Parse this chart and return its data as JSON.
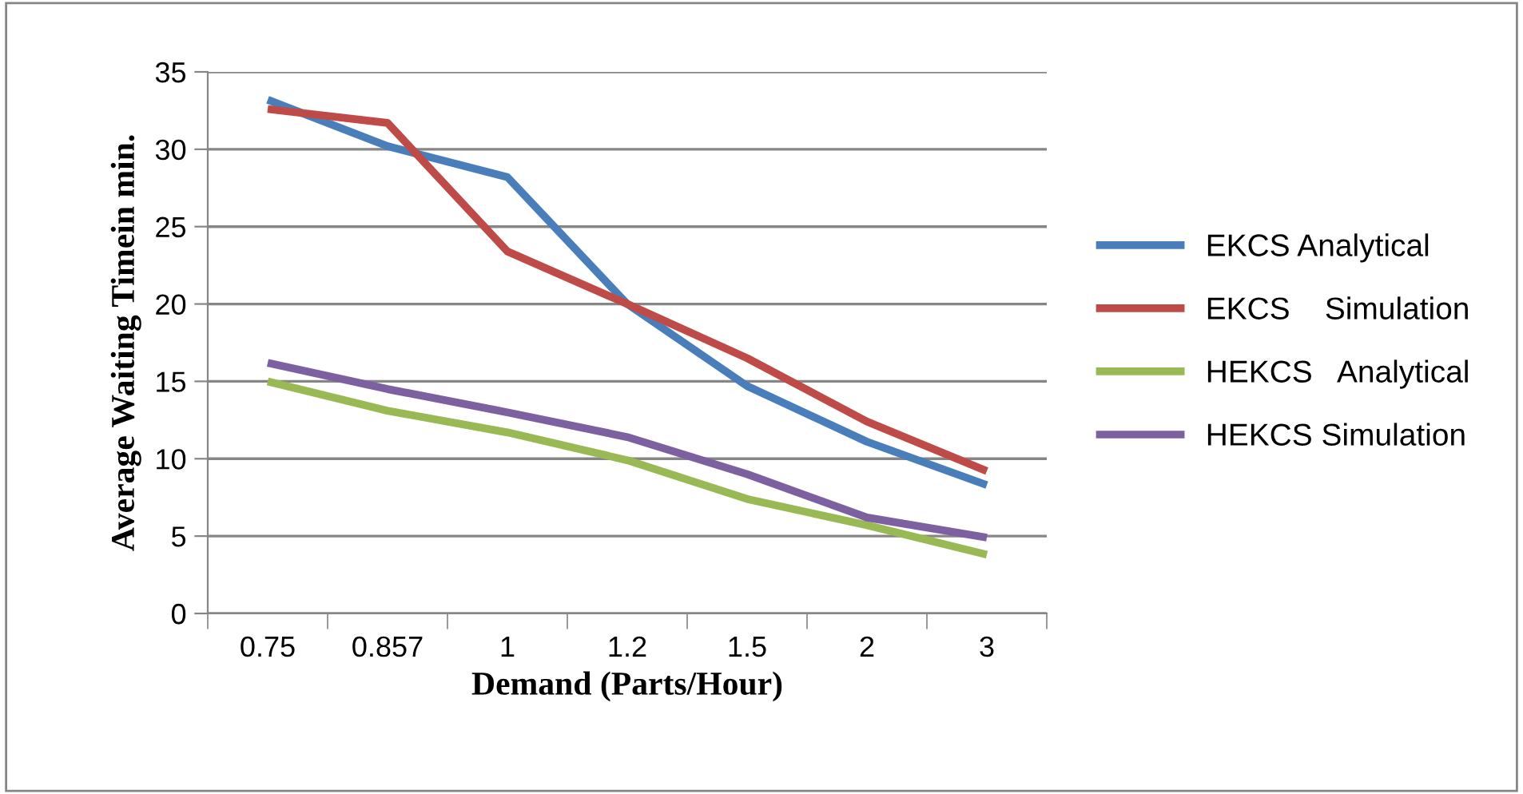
{
  "chart_data": {
    "type": "line",
    "xlabel": "Demand (Parts/Hour)",
    "ylabel": "Average Waiting Timein min.",
    "categories": [
      "0.75",
      "0.857",
      "1",
      "1.2",
      "1.5",
      "2",
      "3"
    ],
    "series": [
      {
        "name": "EKCS Analytical",
        "color": "#4a7ebb",
        "values": [
          33.2,
          30.2,
          28.2,
          20,
          14.7,
          11.1,
          8.3
        ]
      },
      {
        "name": "EKCS    Simulation",
        "color": "#be4b48",
        "values": [
          32.6,
          31.7,
          23.4,
          20,
          16.5,
          12.4,
          9.2
        ]
      },
      {
        "name": "HEKCS   Analytical",
        "color": "#98b954",
        "values": [
          15,
          13.1,
          11.7,
          9.9,
          7.4,
          5.7,
          3.8
        ]
      },
      {
        "name": "HEKCS Simulation",
        "color": "#7d60a0",
        "values": [
          16.2,
          14.5,
          13.0,
          11.4,
          9.0,
          6.2,
          4.9
        ]
      }
    ],
    "ylim": [
      0,
      35
    ],
    "yticks": [
      0,
      5,
      10,
      15,
      20,
      25,
      30,
      35
    ],
    "grid": "y",
    "legend": "right",
    "marker": "none",
    "line_style": "solid"
  }
}
